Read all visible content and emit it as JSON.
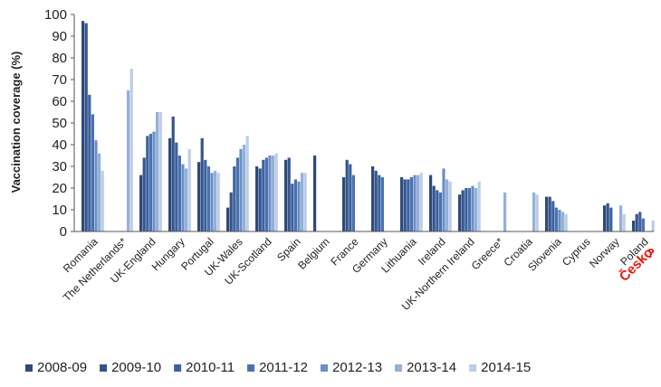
{
  "chart_data": {
    "type": "bar",
    "title": "",
    "xlabel": "",
    "ylabel": "Vaccination coverage (%)",
    "ylim": [
      0,
      100
    ],
    "yticks": [
      "0",
      "10",
      "20",
      "30",
      "40",
      "50",
      "60",
      "70",
      "80",
      "90",
      "100"
    ],
    "grid": false,
    "legend_position": "bottom",
    "categories": [
      "Romania",
      "The Netherlands*",
      "UK-England",
      "Hungary",
      "Portugal",
      "UK-Wales",
      "UK-Scotland",
      "Spain",
      "Belgium",
      "France",
      "Germany",
      "Lithuania",
      "Ireland",
      "UK-Northern Ireland",
      "Greece*",
      "Croatia",
      "Slovenia",
      "Cyprus",
      "Norway",
      "Poland"
    ],
    "series": [
      {
        "name": "2008-09",
        "color": "#2e4a7a",
        "values": [
          97,
          null,
          26,
          43,
          32,
          11,
          30,
          33,
          35,
          25,
          30,
          25,
          26,
          17,
          null,
          null,
          16,
          null,
          12,
          5
        ]
      },
      {
        "name": "2009-10",
        "color": "#34558c",
        "values": [
          96,
          null,
          34,
          53,
          43,
          18,
          29,
          34,
          null,
          33,
          28,
          24,
          21,
          19,
          null,
          null,
          16,
          null,
          13,
          8
        ]
      },
      {
        "name": "2010-11",
        "color": "#3b62a0",
        "values": [
          63,
          null,
          44,
          41,
          33,
          30,
          33,
          22,
          null,
          31,
          26,
          24,
          19,
          20,
          null,
          null,
          14,
          null,
          11,
          9
        ]
      },
      {
        "name": "2011-12",
        "color": "#4a72b0",
        "values": [
          54,
          null,
          45,
          35,
          30,
          34,
          34,
          24,
          null,
          26,
          25,
          25,
          18,
          20,
          null,
          null,
          11,
          null,
          null,
          6
        ]
      },
      {
        "name": "2012-13",
        "color": "#6a8fc6",
        "values": [
          42,
          null,
          46,
          31,
          27,
          38,
          35,
          23,
          null,
          null,
          null,
          26,
          29,
          21,
          null,
          null,
          10,
          null,
          null,
          null
        ]
      },
      {
        "name": "2013-14",
        "color": "#93b0d8",
        "values": [
          36,
          65,
          55,
          29,
          28,
          40,
          35,
          27,
          null,
          null,
          null,
          26,
          24,
          20,
          18,
          18,
          9,
          null,
          12,
          null
        ]
      },
      {
        "name": "2014-15",
        "color": "#bccde8",
        "values": [
          28,
          75,
          55,
          38,
          27,
          44,
          36,
          27,
          null,
          null,
          null,
          27,
          23,
          23,
          null,
          17,
          8,
          null,
          8,
          5
        ]
      }
    ],
    "annotation": {
      "text": "Česko",
      "mark": "?",
      "color": "#e8170d"
    }
  }
}
